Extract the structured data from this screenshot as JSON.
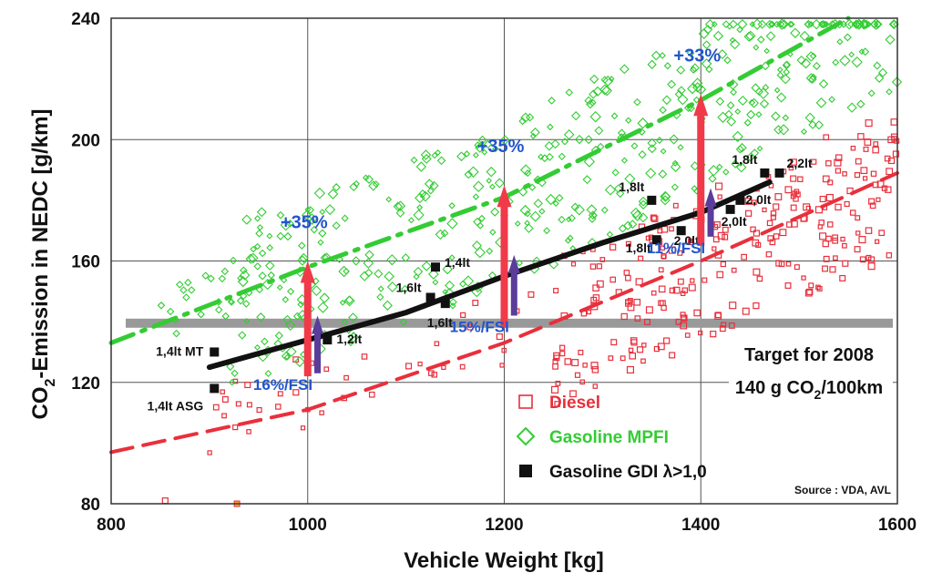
{
  "chart_data": {
    "type": "scatter",
    "xlabel": "Vehicle Weight [kg]",
    "ylabel_parts": {
      "main": "CO",
      "sub": "2",
      "rest": "-Emission in NEDC [g/km]"
    },
    "xlim": [
      800,
      1600
    ],
    "ylim": [
      80,
      240
    ],
    "x_ticks": [
      800,
      1000,
      1200,
      1400,
      1600
    ],
    "y_ticks": [
      80,
      120,
      160,
      200,
      240
    ],
    "grid": true,
    "colors": {
      "diesel": "#e8303c",
      "mpfi": "#33cc33",
      "gdi": "#111111",
      "red_arrow": "#f03a4a",
      "purple_arrow": "#5a3c9a",
      "pct_text": "#2255cc",
      "target_band": "#999999"
    },
    "target_band": [
      138,
      141
    ],
    "trend_lines": [
      {
        "series": "Gasoline MPFI",
        "style": "dash-dot",
        "points": [
          [
            800,
            133
          ],
          [
            1000,
            158
          ],
          [
            1200,
            181
          ],
          [
            1400,
            213
          ],
          [
            1550,
            240
          ]
        ]
      },
      {
        "series": "Gasoline GDI",
        "style": "solid",
        "points": [
          [
            900,
            125
          ],
          [
            1000,
            134
          ],
          [
            1100,
            143
          ],
          [
            1200,
            155
          ],
          [
            1300,
            166
          ],
          [
            1400,
            176
          ],
          [
            1470,
            186
          ]
        ]
      },
      {
        "series": "Diesel",
        "style": "dashed",
        "points": [
          [
            800,
            97
          ],
          [
            1000,
            111
          ],
          [
            1200,
            133
          ],
          [
            1400,
            160
          ],
          [
            1600,
            189
          ]
        ]
      }
    ],
    "gdi_points": [
      {
        "x": 905,
        "y": 130,
        "label": "1,4lt MT"
      },
      {
        "x": 905,
        "y": 118,
        "label": "1,4lt ASG"
      },
      {
        "x": 1020,
        "y": 134,
        "label": "1,2lt"
      },
      {
        "x": 1125,
        "y": 148,
        "label": "1,6lt"
      },
      {
        "x": 1130,
        "y": 158,
        "label": "1,4lt"
      },
      {
        "x": 1140,
        "y": 146,
        "label": "1,6lt"
      },
      {
        "x": 1350,
        "y": 180,
        "label": "1,8lt"
      },
      {
        "x": 1355,
        "y": 167,
        "label": "1,8lt"
      },
      {
        "x": 1380,
        "y": 170,
        "label": "2,0lt"
      },
      {
        "x": 1430,
        "y": 177,
        "label": "2,0lt"
      },
      {
        "x": 1440,
        "y": 180,
        "label": "2,0lt"
      },
      {
        "x": 1465,
        "y": 189,
        "label": "1,8lt"
      },
      {
        "x": 1480,
        "y": 189,
        "label": "2,2lt"
      }
    ],
    "arrows": [
      {
        "x": 1000,
        "y_from": 122,
        "y_to": 160,
        "color": "red",
        "label": "+35%"
      },
      {
        "x": 1200,
        "y_from": 138,
        "y_to": 185,
        "color": "red",
        "label": "+35%"
      },
      {
        "x": 1400,
        "y_from": 165,
        "y_to": 215,
        "color": "red",
        "label": "+33%"
      },
      {
        "x": 1010,
        "y_from": 123,
        "y_to": 142,
        "color": "purple",
        "label": "16%/FSI"
      },
      {
        "x": 1210,
        "y_from": 142,
        "y_to": 162,
        "color": "purple",
        "label": "15%/FSI"
      },
      {
        "x": 1410,
        "y_from": 168,
        "y_to": 184,
        "color": "purple",
        "label": "11%/FSI"
      }
    ],
    "legend": {
      "placement": "bottom-right",
      "entries": [
        {
          "name": "Diesel",
          "marker": "hollow-square"
        },
        {
          "name": "Gasoline MPFI",
          "marker": "hollow-diamond"
        },
        {
          "name": "Gasoline GDI λ>1,0",
          "marker": "filled-square"
        }
      ]
    },
    "annotations": {
      "target_line1": "Target for 2008",
      "target_line2_parts": {
        "main": "140 g CO",
        "sub": "2",
        "rest": "/100km"
      },
      "source": "Source : VDA, AVL"
    }
  }
}
